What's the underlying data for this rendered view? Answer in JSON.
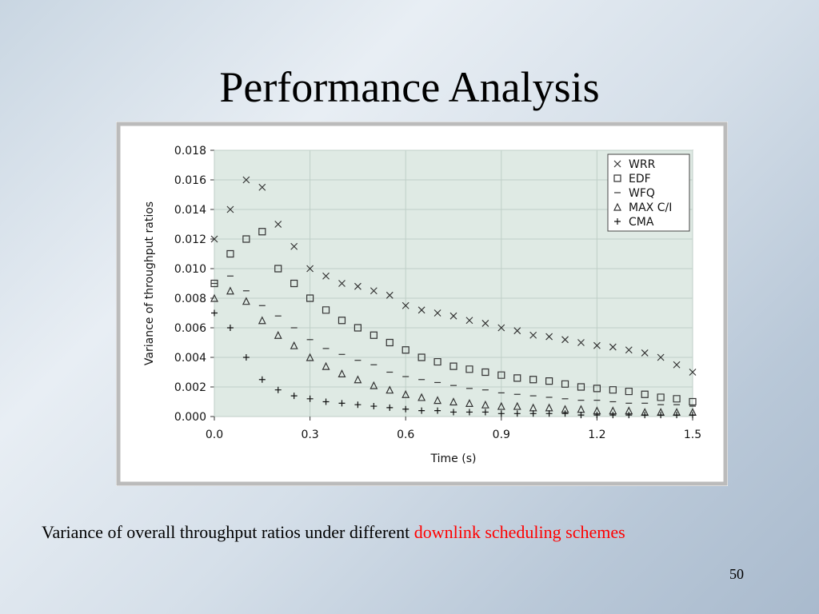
{
  "slide": {
    "title": "Performance Analysis",
    "caption_text": "Variance of overall throughput ratios under different",
    "caption_highlight": "downlink scheduling schemes",
    "page_number": "50"
  },
  "chart_data": {
    "type": "scatter",
    "x_label": "Time (s)",
    "y_label": "Variance of throughput ratios",
    "x": [
      0,
      0.05,
      0.1,
      0.15,
      0.2,
      0.25,
      0.3,
      0.35,
      0.4,
      0.45,
      0.5,
      0.55,
      0.6,
      0.65,
      0.7,
      0.75,
      0.8,
      0.85,
      0.9,
      0.95,
      1.0,
      1.05,
      1.1,
      1.15,
      1.2,
      1.25,
      1.3,
      1.35,
      1.4,
      1.45,
      1.5
    ],
    "series": [
      {
        "name": "WRR",
        "marker": "x",
        "color": "#333333",
        "values": [
          0.012,
          0.014,
          0.016,
          0.0155,
          0.013,
          0.0115,
          0.01,
          0.0095,
          0.009,
          0.0088,
          0.0085,
          0.0082,
          0.0075,
          0.0072,
          0.007,
          0.0068,
          0.0065,
          0.0063,
          0.006,
          0.0058,
          0.0055,
          0.0054,
          0.0052,
          0.005,
          0.0048,
          0.0047,
          0.0045,
          0.0043,
          0.004,
          0.0035,
          0.003
        ]
      },
      {
        "name": "EDF",
        "marker": "square",
        "color": "#333333",
        "values": [
          0.009,
          0.011,
          0.012,
          0.0125,
          0.01,
          0.009,
          0.008,
          0.0072,
          0.0065,
          0.006,
          0.0055,
          0.005,
          0.0045,
          0.004,
          0.0037,
          0.0034,
          0.0032,
          0.003,
          0.0028,
          0.0026,
          0.0025,
          0.0024,
          0.0022,
          0.002,
          0.0019,
          0.0018,
          0.0017,
          0.0015,
          0.0013,
          0.0012,
          0.001
        ]
      },
      {
        "name": "WFQ",
        "marker": "dash",
        "color": "#333333",
        "values": [
          0.009,
          0.0095,
          0.0085,
          0.0075,
          0.0068,
          0.006,
          0.0052,
          0.0046,
          0.0042,
          0.0038,
          0.0035,
          0.003,
          0.0027,
          0.0025,
          0.0023,
          0.0021,
          0.0019,
          0.0018,
          0.0016,
          0.0015,
          0.0014,
          0.0013,
          0.0012,
          0.0011,
          0.0011,
          0.001,
          0.0009,
          0.0009,
          0.0008,
          0.0008,
          0.0007
        ]
      },
      {
        "name": "MAX C/I",
        "marker": "triangle",
        "color": "#333333",
        "values": [
          0.008,
          0.0085,
          0.0078,
          0.0065,
          0.0055,
          0.0048,
          0.004,
          0.0034,
          0.0029,
          0.0025,
          0.0021,
          0.0018,
          0.0015,
          0.0013,
          0.0011,
          0.001,
          0.0009,
          0.0008,
          0.0007,
          0.0007,
          0.0006,
          0.0006,
          0.0005,
          0.0005,
          0.0004,
          0.0004,
          0.0004,
          0.0003,
          0.0003,
          0.0003,
          0.0003
        ]
      },
      {
        "name": "CMA",
        "marker": "plus",
        "color": "#111111",
        "values": [
          0.007,
          0.006,
          0.004,
          0.0025,
          0.0018,
          0.0014,
          0.0012,
          0.001,
          0.0009,
          0.0008,
          0.0007,
          0.0006,
          0.0005,
          0.0004,
          0.0004,
          0.0003,
          0.0003,
          0.0003,
          0.0002,
          0.0002,
          0.0002,
          0.0002,
          0.0002,
          0.0001,
          0.0001,
          0.0001,
          0.0001,
          0.0001,
          0.0001,
          0.0001,
          0.0001
        ]
      }
    ],
    "xlim": [
      0,
      1.5
    ],
    "ylim": [
      0,
      0.018
    ],
    "xticks": [
      {
        "value": 0,
        "label": "0.0"
      },
      0.3,
      0.6,
      0.9,
      1.2,
      1.5
    ],
    "yticks": [
      {
        "value": 0,
        "label": "0.000"
      },
      {
        "value": 0.002,
        "label": "0.002"
      },
      {
        "value": 0.004,
        "label": "0.004"
      },
      {
        "value": 0.006,
        "label": "0.006"
      },
      {
        "value": 0.008,
        "label": "0.008"
      },
      {
        "value": 0.01,
        "label": "0.010"
      },
      {
        "value": 0.012,
        "label": "0.012"
      },
      {
        "value": 0.014,
        "label": "0.014"
      },
      {
        "value": 0.016,
        "label": "0.016"
      },
      {
        "value": 0.018,
        "label": "0.018"
      }
    ],
    "grid": true,
    "legend": "upper right",
    "plot_background": "#dfeae4"
  }
}
